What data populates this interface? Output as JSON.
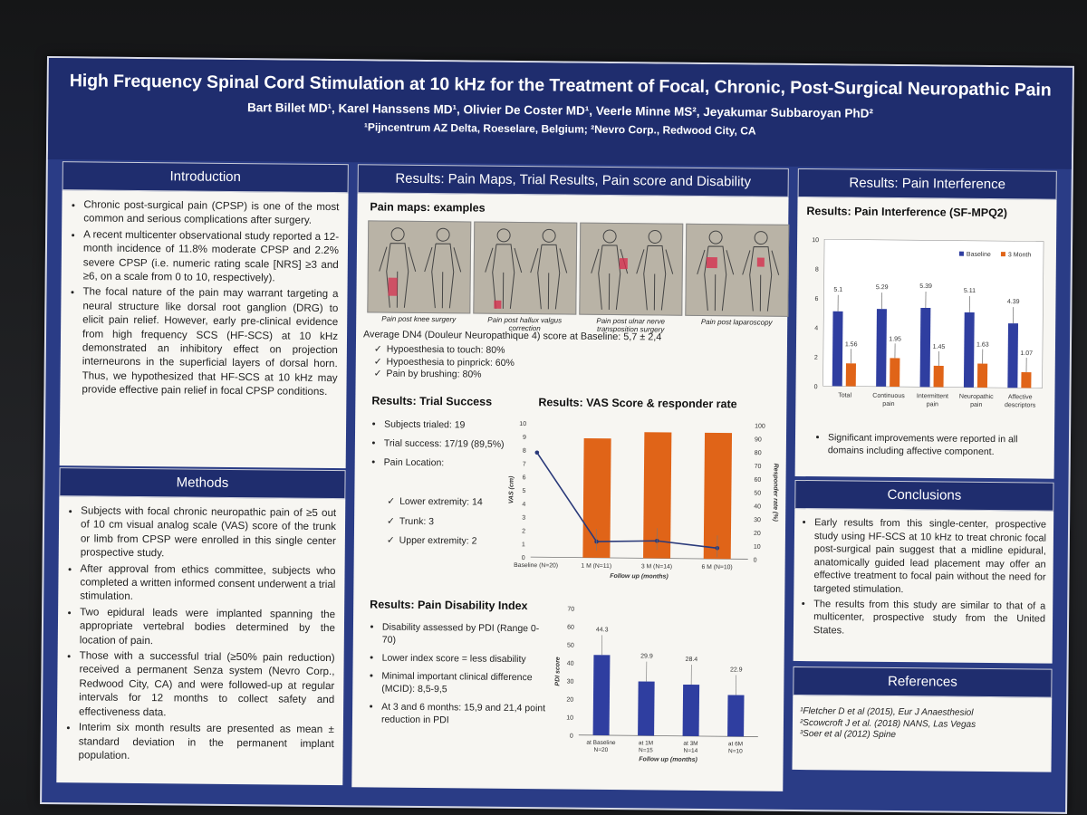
{
  "header": {
    "title": "High Frequency Spinal Cord Stimulation at 10 kHz for the Treatment of Focal, Chronic, Post-Surgical Neuropathic Pain",
    "authors": "Bart Billet MD¹, Karel Hanssens MD¹, Olivier De Coster MD¹, Veerle Minne MS², Jeyakumar Subbaroyan PhD²",
    "affiliations": "¹Pijncentrum AZ Delta, Roeselare, Belgium; ²Nevro Corp., Redwood City, CA"
  },
  "introduction": {
    "heading": "Introduction",
    "bullets": [
      "Chronic post-surgical pain (CPSP) is one of the most common and serious complications after surgery.",
      "A recent multicenter observational study reported a 12-month incidence of 11.8% moderate CPSP and 2.2% severe CPSP (i.e. numeric rating scale [NRS] ≥3 and ≥6, on a scale from 0 to 10, respectively).",
      "The focal nature of the pain may warrant targeting a neural structure like dorsal root ganglion (DRG) to elicit pain relief. However, early pre-clinical evidence from high frequency SCS (HF-SCS) at 10 kHz demonstrated an inhibitory effect on projection interneurons in the superficial layers of dorsal horn. Thus, we hypothesized that HF-SCS at 10 kHz may provide effective pain relief in focal CPSP conditions."
    ]
  },
  "methods": {
    "heading": "Methods",
    "bullets": [
      "Subjects with focal chronic neuropathic pain of ≥5 out of 10 cm visual analog scale (VAS) score of the trunk or limb from CPSP were enrolled in this single center prospective study.",
      "After approval from ethics committee, subjects who completed a written informed consent underwent a trial stimulation.",
      "Two epidural leads were implanted spanning the appropriate vertebral bodies determined by the location of pain.",
      "Those with a successful trial (≥50% pain reduction) received a permanent Senza system (Nevro Corp., Redwood City, CA) and were followed-up at regular intervals for 12 months to collect safety and effectiveness data.",
      "Interim six month results are presented as mean ± standard deviation in the permanent implant population."
    ]
  },
  "results_center": {
    "heading": "Results: Pain Maps,  Trial Results, Pain score and Disability",
    "pain_maps_title": "Pain maps: examples",
    "pain_map_captions": [
      "Pain post knee surgery",
      "Pain post hallux valgus correction",
      "Pain post ulnar nerve transposition surgery",
      "Pain post laparoscopy"
    ],
    "dn4_text": "Average DN4 (Douleur Neuropathique 4) score at Baseline: 5,7 ± 2,4",
    "dn4_items": [
      "Hypoesthesia to touch: 80%",
      "Hypoesthesia to pinprick: 60%",
      "Pain by brushing: 80%"
    ],
    "trial_title": "Results: Trial Success",
    "trial_items": [
      "Subjects trialed: 19",
      "Trial success: 17/19 (89,5%)",
      "Pain Location:"
    ],
    "location_items": [
      "Lower extremity: 14",
      "Trunk: 3",
      "Upper extremity: 2"
    ],
    "vas_title": "Results: VAS Score & responder rate",
    "pdi_title": "Results: Pain Disability Index",
    "pdi_items": [
      "Disability assessed by PDI (Range 0-70)",
      "Lower index score = less disability",
      "Minimal important clinical difference (MCID): 8,5-9,5",
      "At 3 and 6 months: 15,9 and 21,4 point reduction in PDI"
    ]
  },
  "results_right": {
    "heading": "Results: Pain Interference",
    "chart_title": "Results: Pain Interference (SF-MPQ2)",
    "note": "Significant improvements were reported in all domains including affective component."
  },
  "conclusions": {
    "heading": "Conclusions",
    "bullets": [
      "Early results from this single-center, prospective study using HF-SCS at 10 kHz to treat chronic focal post-surgical pain suggest that a midline epidural, anatomically guided lead placement may offer an effective treatment to focal pain without the need for targeted stimulation.",
      "The results from this study are similar to that of a multicenter, prospective study from the United States."
    ]
  },
  "references": {
    "heading": "References",
    "items": [
      "¹Fletcher D et al (2015), Eur J Anaesthesiol",
      "²Scowcroft J et al. (2018) NANS, Las Vegas",
      "³Soer et al (2012) Spine"
    ]
  },
  "colors": {
    "poster_blue": "#2a3c86",
    "bar_blue": "#2f3ea0",
    "bar_orange": "#e06418"
  },
  "chart_data": [
    {
      "type": "bar",
      "title": "",
      "categories": [
        "Total",
        "Continuous pain",
        "Intermittent pain",
        "Neuropathic pain",
        "Affective descriptors"
      ],
      "series": [
        {
          "name": "Baseline",
          "values": [
            5.1,
            5.29,
            5.39,
            5.11,
            4.39
          ]
        },
        {
          "name": "3 Month",
          "values": [
            1.56,
            1.95,
            1.45,
            1.63,
            1.07
          ]
        }
      ],
      "ylim": [
        0,
        10
      ],
      "yticks": [
        0,
        2,
        4,
        6,
        8,
        10
      ],
      "legend": "top-right"
    },
    {
      "type": "bar+line",
      "categories": [
        "Baseline (N=20)",
        "1 M (N=11)",
        "3 M (N=14)",
        "6 M (N=10)"
      ],
      "xlabel": "Follow up (months)",
      "ylabel": "VAS (cm)",
      "y2label": "Responder rate (%)",
      "ylim": [
        0,
        10
      ],
      "y2lim": [
        0,
        100
      ],
      "yticks": [
        0,
        1,
        2,
        3,
        4,
        5,
        6,
        7,
        8,
        9,
        10
      ],
      "y2ticks": [
        0,
        10,
        20,
        30,
        40,
        50,
        60,
        70,
        80,
        90,
        100
      ],
      "responder_rate": [
        null,
        89,
        94,
        94
      ],
      "vas": [
        7.8,
        1.2,
        1.3,
        0.8
      ]
    },
    {
      "type": "bar",
      "categories": [
        "at Baseline N=20",
        "at 1M N=15",
        "at 3M N=14",
        "at 6M N=10"
      ],
      "xlabel": "Follow up (months)",
      "ylabel": "PDI score",
      "ylim": [
        0,
        70
      ],
      "yticks": [
        0,
        10,
        20,
        30,
        40,
        50,
        60,
        70
      ],
      "values": [
        44.3,
        29.9,
        28.4,
        22.9
      ],
      "value_labels": [
        "44.3",
        "29.9",
        "28.4",
        "22.9"
      ]
    }
  ]
}
